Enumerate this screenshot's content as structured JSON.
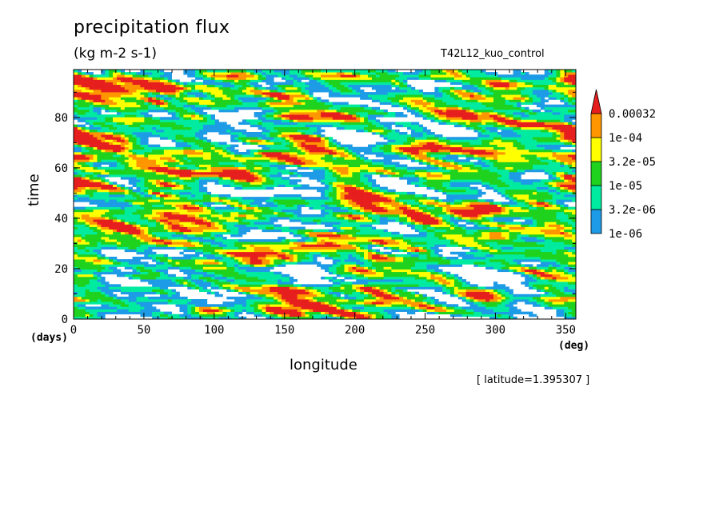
{
  "chart_data": {
    "type": "heatmap",
    "title": "precipitation flux",
    "units": "(kg m-2 s-1)",
    "run_name": "T42L12_kuo_control",
    "xlabel": "longitude",
    "ylabel": "time",
    "x_unit": "(deg)",
    "y_unit": "(days)",
    "xlim": [
      0,
      357.1875
    ],
    "ylim": [
      0,
      99
    ],
    "x_ticks": [
      "0",
      "50",
      "100",
      "150",
      "200",
      "250",
      "300",
      "350"
    ],
    "x_tick_values": [
      0,
      50,
      100,
      150,
      200,
      250,
      300,
      350
    ],
    "y_ticks": [
      "0",
      "20",
      "40",
      "60",
      "80"
    ],
    "y_tick_values": [
      0,
      20,
      40,
      60,
      80
    ],
    "note": "[ latitude=1.395307 ]",
    "colorbar": {
      "levels": [
        "1e-06",
        "3.2e-06",
        "1e-05",
        "3.2e-05",
        "1e-04",
        "0.00032"
      ],
      "colors": [
        "#1e9be6",
        "#00eba0",
        "#1ed21e",
        "#ffff00",
        "#ff9600",
        "#e61e1e"
      ],
      "extend": "max"
    },
    "pattern": "westward-propagating precipitation streaks with scattered intense cores; white where below 1e-06",
    "intense_cores": [
      {
        "lon": 10,
        "time": 94,
        "level": 5
      },
      {
        "lon": 22,
        "time": 69,
        "level": 5
      },
      {
        "lon": 30,
        "time": 37,
        "level": 5
      },
      {
        "lon": 55,
        "time": 31,
        "level": 5
      },
      {
        "lon": 85,
        "time": 44,
        "level": 5
      },
      {
        "lon": 120,
        "time": 56,
        "level": 5
      },
      {
        "lon": 160,
        "time": 80,
        "level": 5
      },
      {
        "lon": 165,
        "time": 72,
        "level": 5
      },
      {
        "lon": 195,
        "time": 80,
        "level": 5
      },
      {
        "lon": 200,
        "time": 19,
        "level": 5
      },
      {
        "lon": 200,
        "time": 40,
        "level": 5
      },
      {
        "lon": 245,
        "time": 5,
        "level": 5
      },
      {
        "lon": 250,
        "time": 40,
        "level": 5
      },
      {
        "lon": 255,
        "time": 57,
        "level": 5
      },
      {
        "lon": 290,
        "time": 9,
        "level": 5
      },
      {
        "lon": 310,
        "time": 78,
        "level": 5
      },
      {
        "lon": 350,
        "time": 53,
        "level": 5
      }
    ]
  }
}
